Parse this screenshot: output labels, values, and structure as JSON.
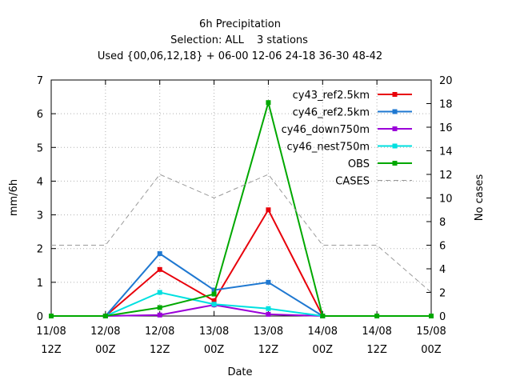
{
  "chart_data": {
    "type": "line",
    "title": "6h Precipitation",
    "subtitle_selection": "Selection: ALL",
    "subtitle_stations": "3 stations",
    "subtitle_used": "Used {00,06,12,18} + 06-00 12-06 24-18 36-30 48-42",
    "xlabel": "Date",
    "ylabel": "mm/6h",
    "y2label": "No cases",
    "ylim": [
      0,
      7
    ],
    "y2lim": [
      0,
      20
    ],
    "yticks": [
      "0",
      "1",
      "2",
      "3",
      "4",
      "5",
      "6",
      "7"
    ],
    "y2ticks": [
      "0",
      "2",
      "4",
      "6",
      "8",
      "10",
      "12",
      "14",
      "16",
      "18",
      "20"
    ],
    "categories": [
      {
        "date": "11/08",
        "hour": "12Z"
      },
      {
        "date": "12/08",
        "hour": "00Z"
      },
      {
        "date": "12/08",
        "hour": "12Z"
      },
      {
        "date": "13/08",
        "hour": "00Z"
      },
      {
        "date": "13/08",
        "hour": "12Z"
      },
      {
        "date": "14/08",
        "hour": "00Z"
      },
      {
        "date": "14/08",
        "hour": "12Z"
      },
      {
        "date": "15/08",
        "hour": "00Z"
      }
    ],
    "x_hours": [
      0,
      12,
      24,
      36,
      48,
      60,
      72,
      84
    ],
    "grid": true,
    "legend_position": "top-right",
    "series": [
      {
        "name": "cy43_ref2.5km",
        "color": "#e8000b",
        "axis": "y1",
        "x": [
          0,
          12,
          24,
          36,
          48,
          60
        ],
        "values": [
          0,
          0,
          1.38,
          0.45,
          3.15,
          0
        ]
      },
      {
        "name": "cy46_ref2.5km",
        "color": "#1f78d1",
        "axis": "y1",
        "x": [
          0,
          12,
          24,
          36,
          48,
          60
        ],
        "values": [
          0,
          0,
          1.85,
          0.77,
          1.0,
          0
        ]
      },
      {
        "name": "cy46_down750m",
        "color": "#9b00d9",
        "axis": "y1",
        "x": [
          0,
          12,
          24,
          36,
          48,
          60
        ],
        "values": [
          0,
          0,
          0.03,
          0.33,
          0.05,
          0
        ]
      },
      {
        "name": "cy46_nest750m",
        "color": "#00e0e0",
        "axis": "y1",
        "x": [
          0,
          12,
          24,
          36,
          48,
          60
        ],
        "values": [
          0,
          0,
          0.7,
          0.35,
          0.22,
          0
        ]
      },
      {
        "name": "OBS",
        "color": "#00a800",
        "axis": "y1",
        "x": [
          0,
          12,
          24,
          36,
          48,
          60,
          72,
          84
        ],
        "values": [
          0,
          0,
          0.25,
          0.65,
          6.33,
          0,
          0,
          0
        ]
      },
      {
        "name": "CASES",
        "color": "#9a9a9a",
        "axis": "y2",
        "dashed": true,
        "x": [
          0,
          12,
          24,
          36,
          48,
          60,
          72,
          84
        ],
        "values": [
          6,
          6,
          12,
          10,
          12,
          6,
          6,
          2
        ]
      }
    ]
  }
}
